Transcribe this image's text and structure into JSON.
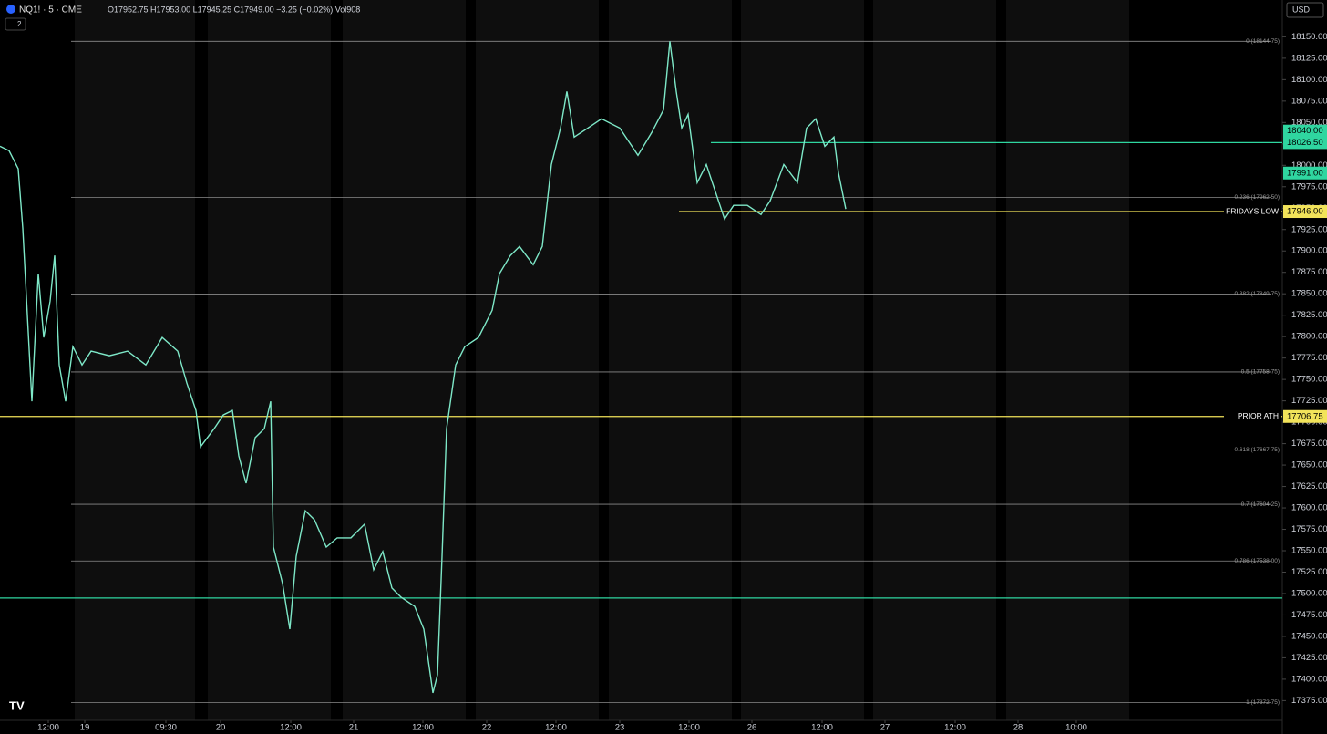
{
  "chart_data": {
    "type": "line",
    "symbol": "NQ1! · 5 · CME",
    "ohlc": "O17952.75 H17953.00 L17945.25 C17949.00 −3.25 (−0.02%) Vol908",
    "currency": "USD",
    "indicator_count": "2",
    "color": "#7ee8c8",
    "xlim": [
      0,
      1407
    ],
    "xticks": [
      {
        "value": 53,
        "label": "12:00"
      },
      {
        "value": 93,
        "label": "19"
      },
      {
        "value": 182,
        "label": "09:30"
      },
      {
        "value": 242,
        "label": "20"
      },
      {
        "value": 319,
        "label": "12:00"
      },
      {
        "value": 388,
        "label": "21"
      },
      {
        "value": 464,
        "label": "12:00"
      },
      {
        "value": 534,
        "label": "22"
      },
      {
        "value": 610,
        "label": "12:00"
      },
      {
        "value": 680,
        "label": "23"
      },
      {
        "value": 756,
        "label": "12:00"
      },
      {
        "value": 825,
        "label": "26"
      },
      {
        "value": 902,
        "label": "12:00"
      },
      {
        "value": 971,
        "label": "27"
      },
      {
        "value": 1048,
        "label": "12:00"
      },
      {
        "value": 1117,
        "label": "28"
      },
      {
        "value": 1181,
        "label": "10:00"
      }
    ],
    "ylim": [
      17352,
      18193
    ],
    "yticks": [
      {
        "value": 18150,
        "label": "18150.00"
      },
      {
        "value": 18125,
        "label": "18125.00"
      },
      {
        "value": 18100,
        "label": "18100.00"
      },
      {
        "value": 18075,
        "label": "18075.00"
      },
      {
        "value": 18050,
        "label": "18050.00"
      },
      {
        "value": 18025,
        "label": "18025.00"
      },
      {
        "value": 18000,
        "label": "18000.00"
      },
      {
        "value": 17975,
        "label": "17975.00"
      },
      {
        "value": 17950,
        "label": "17950.00"
      },
      {
        "value": 17925,
        "label": "17925.00"
      },
      {
        "value": 17900,
        "label": "17900.00"
      },
      {
        "value": 17875,
        "label": "17875.00"
      },
      {
        "value": 17850,
        "label": "17850.00"
      },
      {
        "value": 17825,
        "label": "17825.00"
      },
      {
        "value": 17800,
        "label": "17800.00"
      },
      {
        "value": 17775,
        "label": "17775.00"
      },
      {
        "value": 17750,
        "label": "17750.00"
      },
      {
        "value": 17725,
        "label": "17725.00"
      },
      {
        "value": 17700,
        "label": "17700.00"
      },
      {
        "value": 17675,
        "label": "17675.00"
      },
      {
        "value": 17650,
        "label": "17650.00"
      },
      {
        "value": 17625,
        "label": "17625.00"
      },
      {
        "value": 17600,
        "label": "17600.00"
      },
      {
        "value": 17575,
        "label": "17575.00"
      },
      {
        "value": 17550,
        "label": "17550.00"
      },
      {
        "value": 17525,
        "label": "17525.00"
      },
      {
        "value": 17500,
        "label": "17500.00"
      },
      {
        "value": 17475,
        "label": "17475.00"
      },
      {
        "value": 17450,
        "label": "17450.00"
      },
      {
        "value": 17425,
        "label": "17425.00"
      },
      {
        "value": 17400,
        "label": "17400.00"
      },
      {
        "value": 17375,
        "label": "17375.00"
      }
    ],
    "x": [
      0,
      10,
      20,
      25,
      35,
      42,
      48,
      55,
      60,
      65,
      72,
      80,
      90,
      100,
      120,
      140,
      160,
      178,
      195,
      205,
      215,
      220,
      235,
      245,
      255,
      262,
      270,
      280,
      290,
      297,
      300,
      310,
      318,
      325,
      335,
      345,
      358,
      370,
      385,
      400,
      410,
      420,
      430,
      440,
      455,
      465,
      475,
      480,
      485,
      490,
      500,
      510,
      525,
      540,
      548,
      560,
      570,
      585,
      595,
      605,
      615,
      622,
      630,
      645,
      660,
      680,
      700,
      715,
      728,
      735,
      742,
      748,
      755,
      765,
      775,
      785,
      795,
      805,
      820,
      835,
      845,
      860,
      875,
      885,
      895,
      905,
      915,
      920,
      928
    ],
    "values": [
      18022.25,
      18017,
      17996,
      17926.5,
      17724.5,
      17873.5,
      17799,
      17841.5,
      17894.75,
      17767,
      17724.5,
      17788.25,
      17767,
      17783,
      17777.75,
      17783,
      17767,
      17799,
      17783,
      17745.75,
      17713.75,
      17671.25,
      17692.5,
      17708.5,
      17713.75,
      17660.75,
      17628.75,
      17682,
      17692.5,
      17724.5,
      17554.25,
      17511.75,
      17458.5,
      17543.5,
      17596.75,
      17586.25,
      17554.25,
      17565,
      17565,
      17581,
      17527.75,
      17549,
      17506.5,
      17495.75,
      17485,
      17458.5,
      17384,
      17405.25,
      17543.5,
      17692.5,
      17767,
      17788.25,
      17799,
      17830.75,
      17873.5,
      17894.75,
      17905.25,
      17884,
      17905.25,
      18001,
      18043.5,
      18086.25,
      18033,
      18043.5,
      18054.25,
      18043.5,
      18011.75,
      18038.25,
      18064.75,
      18144.75,
      18086.25,
      18043.5,
      18059.5,
      17979.75,
      18001,
      17969,
      17937.25,
      17953.25,
      17953.25,
      17942.5,
      17958.5,
      18001,
      17979.75,
      18043.5,
      18054.25,
      18022.25,
      18033,
      17991,
      17949
    ],
    "fib_levels": [
      {
        "value": 18144.75,
        "label": "0 (18144.75)"
      },
      {
        "value": 17962.5,
        "label": "0.236 (17962.50)"
      },
      {
        "value": 17849.75,
        "label": "0.382 (17849.75)"
      },
      {
        "value": 17758.75,
        "label": "0.5 (17758.75)"
      },
      {
        "value": 17667.75,
        "label": "0.618 (17667.75)"
      },
      {
        "value": 17604.25,
        "label": "0.7 (17604.25)"
      },
      {
        "value": 17538,
        "label": "0.786 (17538.00)"
      },
      {
        "value": 17372.75,
        "label": "1 (17372.75)"
      }
    ],
    "key_levels": [
      {
        "name": "PRIOR ATH",
        "value": 17706.75,
        "label": "17706.75",
        "color": "#f2e35a",
        "from_x": 0
      },
      {
        "name": "FRIDAYS LOW",
        "value": 17946,
        "label": "17946.00",
        "color": "#f2e35a",
        "from_x": 745
      },
      {
        "value": 18026.5,
        "label": "18026.50",
        "color": "#2fd6a0",
        "from_x": 780
      },
      {
        "value": 17494.75,
        "color": "#2fd6a0",
        "from_x": 0
      }
    ],
    "price_tags": [
      {
        "value": 18040,
        "label": "18040.00",
        "color": "#2fd6a0"
      },
      {
        "value": 17991,
        "label": "17991.00",
        "color": "#2fd6a0"
      }
    ]
  }
}
